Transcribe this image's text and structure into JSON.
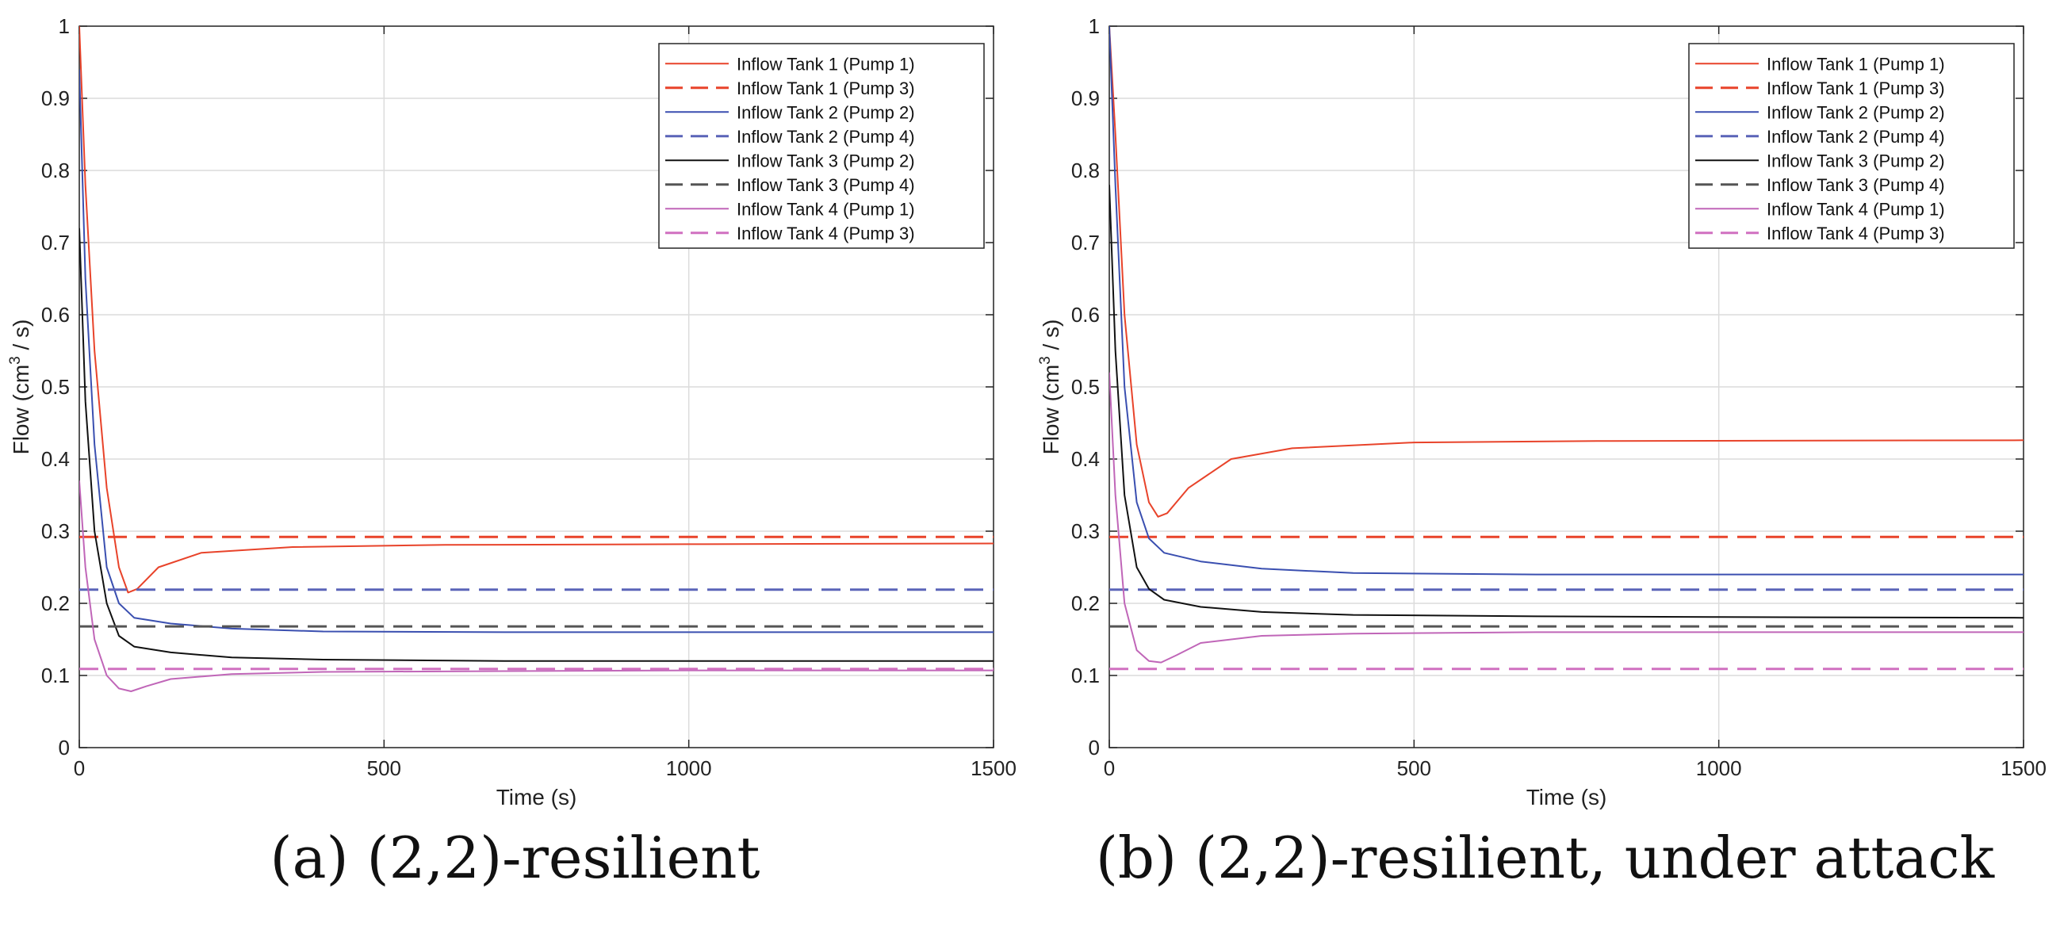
{
  "charts": [
    {
      "caption": "(a) (2,2)-resilient",
      "xlabel": "Time (s)",
      "ylabel_main": "Flow (cm",
      "ylabel_sup": "3",
      "ylabel_tail": " / s)"
    },
    {
      "caption": "(b) (2,2)-resilient, under attack",
      "xlabel": "Time (s)",
      "ylabel_main": "Flow (cm",
      "ylabel_sup": "3",
      "ylabel_tail": " / s)"
    }
  ],
  "chart_data": [
    {
      "type": "line",
      "xlabel": "Time (s)",
      "ylabel": "Flow (cm3 / s)",
      "xlim": [
        0,
        1500
      ],
      "ylim": [
        0,
        1
      ],
      "xticks": [
        0,
        500,
        1000,
        1500
      ],
      "yticks": [
        0,
        0.1,
        0.2,
        0.3,
        0.4,
        0.5,
        0.6,
        0.7,
        0.8,
        0.9,
        1
      ],
      "grid": true,
      "legend_position": "top-right",
      "series": [
        {
          "name": "Inflow Tank 1 (Pump 1)",
          "color": "#e8432a",
          "dash": "solid",
          "x": [
            0,
            10,
            25,
            45,
            65,
            80,
            95,
            130,
            200,
            350,
            600,
            1000,
            1500
          ],
          "y": [
            1.0,
            0.78,
            0.55,
            0.36,
            0.25,
            0.215,
            0.22,
            0.25,
            0.27,
            0.278,
            0.281,
            0.282,
            0.283
          ]
        },
        {
          "name": "Inflow Tank 1 (Pump 3)",
          "color": "#e8432a",
          "dash": "dashed",
          "x": [
            0,
            1500
          ],
          "y": [
            0.292,
            0.292
          ]
        },
        {
          "name": "Inflow Tank 2 (Pump 2)",
          "color": "#3a4fb0",
          "dash": "solid",
          "x": [
            0,
            10,
            25,
            45,
            65,
            90,
            150,
            250,
            400,
            700,
            1000,
            1500
          ],
          "y": [
            0.94,
            0.65,
            0.42,
            0.25,
            0.2,
            0.18,
            0.172,
            0.165,
            0.161,
            0.16,
            0.16,
            0.16
          ]
        },
        {
          "name": "Inflow Tank 2 (Pump 4)",
          "color": "#5a64b8",
          "dash": "dashed",
          "x": [
            0,
            1500
          ],
          "y": [
            0.219,
            0.219
          ]
        },
        {
          "name": "Inflow Tank 3 (Pump 2)",
          "color": "#111111",
          "dash": "solid",
          "x": [
            0,
            10,
            25,
            45,
            65,
            90,
            150,
            250,
            400,
            700,
            1000,
            1500
          ],
          "y": [
            0.72,
            0.48,
            0.3,
            0.2,
            0.155,
            0.14,
            0.132,
            0.125,
            0.122,
            0.12,
            0.12,
            0.12
          ]
        },
        {
          "name": "Inflow Tank 3 (Pump 4)",
          "color": "#555555",
          "dash": "dashed",
          "x": [
            0,
            1500
          ],
          "y": [
            0.168,
            0.168
          ]
        },
        {
          "name": "Inflow Tank 4 (Pump 1)",
          "color": "#c066b8",
          "dash": "solid",
          "x": [
            0,
            10,
            25,
            45,
            65,
            85,
            110,
            150,
            250,
            400,
            700,
            1000,
            1500
          ],
          "y": [
            0.37,
            0.25,
            0.15,
            0.1,
            0.082,
            0.078,
            0.085,
            0.095,
            0.102,
            0.105,
            0.106,
            0.107,
            0.107
          ]
        },
        {
          "name": "Inflow Tank 4 (Pump 3)",
          "color": "#d070c0",
          "dash": "dashed",
          "x": [
            0,
            1500
          ],
          "y": [
            0.109,
            0.109
          ]
        }
      ]
    },
    {
      "type": "line",
      "xlabel": "Time (s)",
      "ylabel": "Flow (cm3 / s)",
      "xlim": [
        0,
        1500
      ],
      "ylim": [
        0,
        1
      ],
      "xticks": [
        0,
        500,
        1000,
        1500
      ],
      "yticks": [
        0,
        0.1,
        0.2,
        0.3,
        0.4,
        0.5,
        0.6,
        0.7,
        0.8,
        0.9,
        1
      ],
      "grid": true,
      "legend_position": "top-right",
      "series": [
        {
          "name": "Inflow Tank 1 (Pump 1)",
          "color": "#e8432a",
          "dash": "solid",
          "x": [
            0,
            10,
            25,
            45,
            65,
            80,
            95,
            130,
            200,
            300,
            500,
            800,
            1500
          ],
          "y": [
            1.0,
            0.85,
            0.6,
            0.42,
            0.34,
            0.32,
            0.325,
            0.36,
            0.4,
            0.415,
            0.423,
            0.425,
            0.426
          ]
        },
        {
          "name": "Inflow Tank 1 (Pump 3)",
          "color": "#e8432a",
          "dash": "dashed",
          "x": [
            0,
            1500
          ],
          "y": [
            0.292,
            0.292
          ]
        },
        {
          "name": "Inflow Tank 2 (Pump 2)",
          "color": "#3a4fb0",
          "dash": "solid",
          "x": [
            0,
            10,
            25,
            45,
            65,
            90,
            150,
            250,
            400,
            700,
            1000,
            1500
          ],
          "y": [
            1.0,
            0.78,
            0.5,
            0.34,
            0.29,
            0.27,
            0.258,
            0.248,
            0.242,
            0.24,
            0.24,
            0.24
          ]
        },
        {
          "name": "Inflow Tank 2 (Pump 4)",
          "color": "#5a64b8",
          "dash": "dashed",
          "x": [
            0,
            1500
          ],
          "y": [
            0.219,
            0.219
          ]
        },
        {
          "name": "Inflow Tank 3 (Pump 2)",
          "color": "#111111",
          "dash": "solid",
          "x": [
            0,
            10,
            25,
            45,
            65,
            90,
            150,
            250,
            400,
            700,
            1000,
            1500
          ],
          "y": [
            0.78,
            0.55,
            0.35,
            0.25,
            0.22,
            0.205,
            0.195,
            0.188,
            0.184,
            0.182,
            0.181,
            0.18
          ]
        },
        {
          "name": "Inflow Tank 3 (Pump 4)",
          "color": "#555555",
          "dash": "dashed",
          "x": [
            0,
            1500
          ],
          "y": [
            0.168,
            0.168
          ]
        },
        {
          "name": "Inflow Tank 4 (Pump 1)",
          "color": "#c066b8",
          "dash": "solid",
          "x": [
            0,
            10,
            25,
            45,
            65,
            85,
            110,
            150,
            250,
            400,
            700,
            1000,
            1500
          ],
          "y": [
            0.52,
            0.35,
            0.2,
            0.135,
            0.12,
            0.118,
            0.128,
            0.145,
            0.155,
            0.158,
            0.16,
            0.16,
            0.16
          ]
        },
        {
          "name": "Inflow Tank 4 (Pump 3)",
          "color": "#d070c0",
          "dash": "dashed",
          "x": [
            0,
            1500
          ],
          "y": [
            0.109,
            0.109
          ]
        }
      ]
    }
  ]
}
